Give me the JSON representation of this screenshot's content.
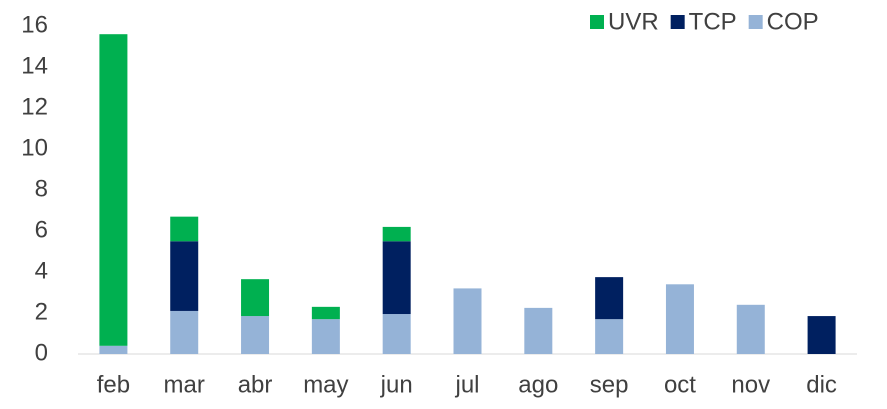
{
  "chart_data": {
    "type": "stacked_bar",
    "categories": [
      "feb",
      "mar",
      "abr",
      "may",
      "jun",
      "jul",
      "ago",
      "sep",
      "oct",
      "nov",
      "dic"
    ],
    "series": [
      {
        "name": "COP",
        "color": "#95b3d7",
        "values": [
          0.4,
          2.1,
          1.85,
          1.7,
          1.95,
          3.2,
          2.25,
          1.7,
          3.4,
          2.4,
          0
        ]
      },
      {
        "name": "TCP",
        "color": "#002060",
        "values": [
          0,
          3.4,
          0,
          0,
          3.55,
          0,
          0,
          2.05,
          0,
          0,
          1.85
        ]
      },
      {
        "name": "UVR",
        "color": "#00b050",
        "values": [
          15.2,
          1.2,
          1.8,
          0.6,
          0.7,
          0,
          0,
          0,
          0,
          0,
          0
        ]
      }
    ],
    "ylim": [
      0,
      16
    ],
    "yticks": [
      0,
      2,
      4,
      6,
      8,
      10,
      12,
      14,
      16
    ],
    "grid": false,
    "legend": "top-right"
  }
}
